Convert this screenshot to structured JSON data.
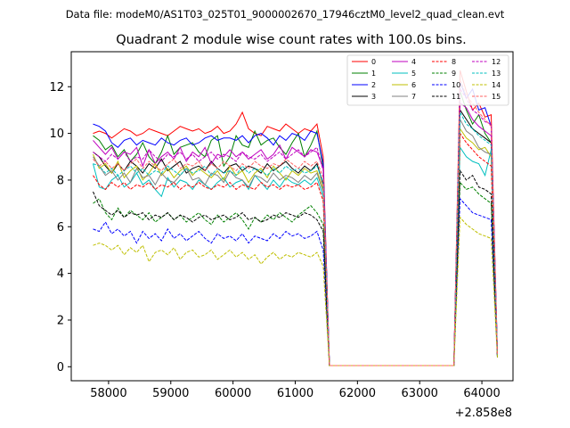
{
  "figure": {
    "suptitle": "Data file: modeM0/AS1T03_025T01_9000002670_17946cztM0_level2_quad_clean.evt"
  },
  "chart_data": {
    "type": "line",
    "title": "Quadrant 2 module wise count rates with 100.0s bins.",
    "xlabel": "",
    "ylabel": "",
    "x_offset_label": "+2.858e8",
    "x_offset": 285800000,
    "xlim": [
      57400,
      64500
    ],
    "ylim": [
      -0.6,
      13.5
    ],
    "xticks": [
      58000,
      59000,
      60000,
      61000,
      62000,
      63000,
      64000
    ],
    "yticks": [
      0,
      2,
      4,
      6,
      8,
      10,
      12
    ],
    "xtick_labels": [
      "58000",
      "59000",
      "60000",
      "61000",
      "62000",
      "63000",
      "64000"
    ],
    "ytick_labels": [
      "0",
      "2",
      "4",
      "6",
      "8",
      "10",
      "12"
    ],
    "grid": false,
    "legend_position": "top-right",
    "x": [
      57750,
      57850,
      57950,
      58050,
      58150,
      58250,
      58350,
      58450,
      58550,
      58650,
      58750,
      58850,
      58950,
      59050,
      59150,
      59250,
      59350,
      59450,
      59550,
      59650,
      59750,
      59850,
      59950,
      60050,
      60150,
      60250,
      60350,
      60450,
      60550,
      60650,
      60750,
      60850,
      60950,
      61050,
      61150,
      61250,
      61350,
      61450,
      61550,
      61650,
      61750,
      61850,
      61950,
      62050,
      62150,
      62250,
      62350,
      62450,
      62550,
      62650,
      62750,
      62850,
      62950,
      63050,
      63150,
      63250,
      63350,
      63450,
      63550,
      63650,
      63750,
      63850,
      63950,
      64050,
      64150,
      64250
    ],
    "series": [
      {
        "name": "0",
        "color": "#ff0000",
        "dash": false,
        "values": [
          10.0,
          10.1,
          10.0,
          9.8,
          10.0,
          10.2,
          10.1,
          9.9,
          10.0,
          10.2,
          10.1,
          10.0,
          9.9,
          10.1,
          10.3,
          10.2,
          10.1,
          10.2,
          10.0,
          10.1,
          10.3,
          10.0,
          10.1,
          10.4,
          10.9,
          10.2,
          10.0,
          9.9,
          10.3,
          10.2,
          10.1,
          10.4,
          10.2,
          10.0,
          10.2,
          10.1,
          10.4,
          9.0,
          0.05,
          0.05,
          0.05,
          0.05,
          0.05,
          0.05,
          0.05,
          0.05,
          0.05,
          0.05,
          0.05,
          0.05,
          0.05,
          0.05,
          0.05,
          0.05,
          0.05,
          0.05,
          0.05,
          0.05,
          0.05,
          12.7,
          11.8,
          11.0,
          11.3,
          10.7,
          10.8,
          0.6
        ]
      },
      {
        "name": "1",
        "color": "#008000",
        "dash": false,
        "values": [
          9.9,
          9.7,
          9.3,
          9.5,
          9.0,
          9.3,
          8.8,
          9.1,
          9.6,
          9.0,
          8.7,
          9.2,
          9.9,
          9.1,
          9.4,
          9.5,
          9.6,
          9.2,
          9.0,
          9.7,
          9.9,
          8.6,
          9.0,
          9.9,
          9.5,
          9.4,
          10.1,
          9.5,
          9.7,
          9.8,
          9.4,
          9.1,
          9.6,
          10.0,
          9.0,
          9.5,
          10.1,
          8.5,
          0.05,
          0.05,
          0.05,
          0.05,
          0.05,
          0.05,
          0.05,
          0.05,
          0.05,
          0.05,
          0.05,
          0.05,
          0.05,
          0.05,
          0.05,
          0.05,
          0.05,
          0.05,
          0.05,
          0.05,
          0.05,
          11.8,
          11.0,
          10.4,
          10.8,
          10.0,
          9.6,
          0.5
        ]
      },
      {
        "name": "2",
        "color": "#0000ff",
        "dash": false,
        "values": [
          10.4,
          10.3,
          10.1,
          9.6,
          9.4,
          9.7,
          9.8,
          9.5,
          9.7,
          9.6,
          9.5,
          9.8,
          9.6,
          9.5,
          9.7,
          9.8,
          9.5,
          9.6,
          9.8,
          9.9,
          9.7,
          9.8,
          9.8,
          9.7,
          9.9,
          9.6,
          9.9,
          10.0,
          9.8,
          9.5,
          9.9,
          9.7,
          10.0,
          9.9,
          9.7,
          10.1,
          10.0,
          8.7,
          0.05,
          0.05,
          0.05,
          0.05,
          0.05,
          0.05,
          0.05,
          0.05,
          0.05,
          0.05,
          0.05,
          0.05,
          0.05,
          0.05,
          0.05,
          0.05,
          0.05,
          0.05,
          0.05,
          0.05,
          0.05,
          12.2,
          11.5,
          11.9,
          11.0,
          11.1,
          10.3,
          0.6
        ]
      },
      {
        "name": "3",
        "color": "#000000",
        "dash": false,
        "values": [
          9.2,
          9.0,
          8.6,
          8.3,
          8.7,
          8.4,
          8.8,
          8.6,
          8.3,
          8.7,
          8.5,
          8.9,
          8.4,
          8.6,
          8.8,
          8.3,
          8.5,
          8.6,
          8.4,
          8.8,
          8.5,
          8.3,
          8.6,
          8.7,
          8.4,
          8.6,
          8.5,
          8.3,
          8.7,
          8.4,
          8.6,
          8.8,
          8.5,
          8.3,
          8.6,
          8.4,
          8.7,
          7.8,
          0.05,
          0.05,
          0.05,
          0.05,
          0.05,
          0.05,
          0.05,
          0.05,
          0.05,
          0.05,
          0.05,
          0.05,
          0.05,
          0.05,
          0.05,
          0.05,
          0.05,
          0.05,
          0.05,
          0.05,
          0.05,
          11.0,
          10.6,
          10.2,
          10.0,
          9.8,
          9.6,
          0.5
        ]
      },
      {
        "name": "4",
        "color": "#bf00bf",
        "dash": false,
        "values": [
          9.7,
          9.4,
          9.1,
          9.4,
          8.9,
          9.2,
          9.1,
          9.4,
          8.6,
          9.3,
          8.7,
          9.0,
          9.2,
          8.9,
          9.4,
          8.8,
          9.2,
          9.0,
          9.4,
          8.7,
          9.1,
          9.0,
          9.3,
          9.0,
          9.2,
          8.9,
          9.1,
          9.3,
          8.9,
          9.1,
          9.5,
          8.9,
          9.4,
          9.2,
          9.0,
          9.3,
          9.2,
          8.5,
          0.05,
          0.05,
          0.05,
          0.05,
          0.05,
          0.05,
          0.05,
          0.05,
          0.05,
          0.05,
          0.05,
          0.05,
          0.05,
          0.05,
          0.05,
          0.05,
          0.05,
          0.05,
          0.05,
          0.05,
          0.05,
          11.3,
          11.1,
          10.6,
          10.3,
          10.1,
          9.9,
          0.5
        ]
      },
      {
        "name": "5",
        "color": "#00bfbf",
        "dash": false,
        "values": [
          8.7,
          7.7,
          7.6,
          8.0,
          8.2,
          7.7,
          7.9,
          8.3,
          7.8,
          8.0,
          7.6,
          7.3,
          8.1,
          7.7,
          8.0,
          7.9,
          7.6,
          8.0,
          7.8,
          7.6,
          7.9,
          8.1,
          7.7,
          7.9,
          8.0,
          7.6,
          8.2,
          7.9,
          7.6,
          8.0,
          7.7,
          8.1,
          7.9,
          7.8,
          8.0,
          7.8,
          8.1,
          7.3,
          0.05,
          0.05,
          0.05,
          0.05,
          0.05,
          0.05,
          0.05,
          0.05,
          0.05,
          0.05,
          0.05,
          0.05,
          0.05,
          0.05,
          0.05,
          0.05,
          0.05,
          0.05,
          0.05,
          0.05,
          0.05,
          9.4,
          9.0,
          8.8,
          8.7,
          8.2,
          9.3,
          0.5
        ]
      },
      {
        "name": "6",
        "color": "#bfbf00",
        "dash": false,
        "values": [
          9.1,
          8.5,
          8.7,
          8.3,
          8.8,
          8.1,
          8.4,
          8.6,
          8.0,
          8.3,
          8.7,
          8.2,
          8.5,
          8.1,
          8.4,
          8.6,
          8.2,
          8.5,
          8.3,
          8.1,
          8.4,
          8.0,
          8.6,
          8.2,
          8.4,
          7.9,
          8.3,
          8.5,
          8.1,
          8.6,
          8.3,
          8.0,
          8.4,
          8.2,
          8.5,
          8.3,
          8.4,
          7.6,
          0.05,
          0.05,
          0.05,
          0.05,
          0.05,
          0.05,
          0.05,
          0.05,
          0.05,
          0.05,
          0.05,
          0.05,
          0.05,
          0.05,
          0.05,
          0.05,
          0.05,
          0.05,
          0.05,
          0.05,
          0.05,
          10.2,
          9.8,
          9.6,
          9.3,
          9.4,
          9.0,
          0.5
        ]
      },
      {
        "name": "7",
        "color": "#808080",
        "dash": false,
        "values": [
          9.0,
          8.6,
          8.2,
          8.4,
          8.0,
          8.3,
          7.9,
          8.5,
          8.1,
          8.2,
          7.8,
          8.3,
          8.0,
          7.9,
          8.2,
          8.5,
          8.0,
          8.1,
          7.8,
          8.3,
          8.2,
          7.9,
          8.4,
          8.1,
          8.0,
          7.7,
          8.2,
          8.1,
          7.9,
          8.3,
          8.0,
          8.2,
          8.1,
          7.9,
          8.2,
          8.0,
          8.3,
          7.5,
          0.05,
          0.05,
          0.05,
          0.05,
          0.05,
          0.05,
          0.05,
          0.05,
          0.05,
          0.05,
          0.05,
          0.05,
          0.05,
          0.05,
          0.05,
          0.05,
          0.05,
          0.05,
          0.05,
          0.05,
          0.05,
          10.6,
          10.1,
          9.9,
          9.4,
          9.2,
          9.1,
          0.5
        ]
      },
      {
        "name": "8",
        "color": "#ff0000",
        "dash": true,
        "values": [
          8.2,
          7.8,
          7.6,
          7.9,
          7.7,
          7.9,
          7.6,
          7.8,
          7.7,
          7.9,
          7.6,
          7.8,
          7.7,
          7.9,
          7.6,
          7.8,
          7.7,
          7.9,
          7.7,
          7.6,
          7.8,
          7.7,
          7.9,
          7.6,
          7.8,
          7.7,
          7.6,
          7.9,
          7.7,
          7.8,
          7.6,
          7.8,
          7.7,
          7.8,
          7.6,
          7.7,
          7.9,
          7.1,
          0.05,
          0.05,
          0.05,
          0.05,
          0.05,
          0.05,
          0.05,
          0.05,
          0.05,
          0.05,
          0.05,
          0.05,
          0.05,
          0.05,
          0.05,
          0.05,
          0.05,
          0.05,
          0.05,
          0.05,
          0.05,
          10.0,
          9.6,
          9.3,
          9.0,
          8.8,
          8.6,
          0.5
        ]
      },
      {
        "name": "9",
        "color": "#008000",
        "dash": true,
        "values": [
          7.0,
          7.2,
          6.6,
          6.3,
          6.8,
          6.4,
          6.7,
          6.5,
          6.3,
          6.6,
          6.2,
          6.4,
          6.6,
          6.3,
          6.5,
          6.2,
          6.4,
          6.6,
          6.3,
          6.1,
          6.5,
          6.2,
          6.4,
          6.6,
          6.3,
          5.9,
          6.4,
          6.2,
          6.5,
          6.3,
          6.6,
          6.4,
          6.2,
          6.5,
          6.7,
          6.9,
          6.6,
          6.1,
          0.05,
          0.05,
          0.05,
          0.05,
          0.05,
          0.05,
          0.05,
          0.05,
          0.05,
          0.05,
          0.05,
          0.05,
          0.05,
          0.05,
          0.05,
          0.05,
          0.05,
          0.05,
          0.05,
          0.05,
          0.05,
          7.9,
          7.6,
          7.7,
          7.4,
          7.2,
          7.0,
          0.4
        ]
      },
      {
        "name": "10",
        "color": "#0000ff",
        "dash": true,
        "values": [
          5.9,
          5.8,
          6.2,
          5.7,
          5.9,
          5.6,
          5.8,
          5.3,
          5.8,
          5.5,
          5.7,
          5.4,
          5.9,
          5.5,
          5.7,
          5.4,
          5.6,
          5.8,
          5.5,
          5.3,
          5.7,
          5.5,
          5.6,
          5.4,
          5.7,
          5.3,
          5.6,
          5.5,
          5.4,
          5.7,
          5.5,
          5.8,
          5.6,
          5.7,
          5.5,
          5.6,
          5.8,
          5.0,
          0.05,
          0.05,
          0.05,
          0.05,
          0.05,
          0.05,
          0.05,
          0.05,
          0.05,
          0.05,
          0.05,
          0.05,
          0.05,
          0.05,
          0.05,
          0.05,
          0.05,
          0.05,
          0.05,
          0.05,
          0.05,
          7.2,
          6.9,
          6.6,
          6.5,
          6.4,
          6.3,
          0.4
        ]
      },
      {
        "name": "11",
        "color": "#000000",
        "dash": true,
        "values": [
          7.5,
          6.9,
          6.7,
          6.5,
          6.7,
          6.4,
          6.6,
          6.5,
          6.6,
          6.3,
          6.5,
          6.4,
          6.6,
          6.3,
          6.5,
          6.4,
          6.2,
          6.4,
          6.5,
          6.3,
          6.4,
          6.5,
          6.3,
          6.4,
          6.6,
          6.3,
          6.4,
          6.2,
          6.3,
          6.5,
          6.4,
          6.6,
          6.5,
          6.4,
          6.6,
          6.5,
          6.3,
          5.8,
          0.05,
          0.05,
          0.05,
          0.05,
          0.05,
          0.05,
          0.05,
          0.05,
          0.05,
          0.05,
          0.05,
          0.05,
          0.05,
          0.05,
          0.05,
          0.05,
          0.05,
          0.05,
          0.05,
          0.05,
          0.05,
          8.4,
          8.0,
          8.2,
          7.7,
          7.6,
          7.4,
          0.4
        ]
      },
      {
        "name": "12",
        "color": "#bf00bf",
        "dash": true,
        "values": [
          9.2,
          9.0,
          8.8,
          9.1,
          8.9,
          9.2,
          8.8,
          9.0,
          8.9,
          9.3,
          9.0,
          8.8,
          9.1,
          9.0,
          9.2,
          8.9,
          9.1,
          8.8,
          9.0,
          9.2,
          8.9,
          9.1,
          9.0,
          8.8,
          9.2,
          9.0,
          8.9,
          9.1,
          8.8,
          9.0,
          9.2,
          8.9,
          9.1,
          9.3,
          9.0,
          9.2,
          9.4,
          8.4,
          0.05,
          0.05,
          0.05,
          0.05,
          0.05,
          0.05,
          0.05,
          0.05,
          0.05,
          0.05,
          0.05,
          0.05,
          0.05,
          0.05,
          0.05,
          0.05,
          0.05,
          0.05,
          0.05,
          0.05,
          0.05,
          11.9,
          11.5,
          11.0,
          10.8,
          10.5,
          10.4,
          0.5
        ]
      },
      {
        "name": "13",
        "color": "#00bfbf",
        "dash": true,
        "values": [
          8.7,
          8.6,
          8.3,
          8.5,
          8.2,
          8.4,
          8.6,
          8.3,
          8.5,
          8.2,
          8.4,
          8.3,
          8.6,
          8.4,
          8.2,
          8.5,
          8.3,
          8.4,
          8.6,
          8.2,
          8.5,
          8.3,
          8.4,
          8.2,
          8.6,
          8.3,
          8.5,
          8.4,
          8.2,
          8.5,
          8.3,
          8.6,
          8.4,
          8.5,
          8.3,
          8.4,
          8.6,
          7.9,
          0.05,
          0.05,
          0.05,
          0.05,
          0.05,
          0.05,
          0.05,
          0.05,
          0.05,
          0.05,
          0.05,
          0.05,
          0.05,
          0.05,
          0.05,
          0.05,
          0.05,
          0.05,
          0.05,
          0.05,
          0.05,
          10.9,
          10.4,
          10.2,
          9.9,
          9.7,
          9.5,
          0.5
        ]
      },
      {
        "name": "14",
        "color": "#bfbf00",
        "dash": true,
        "values": [
          5.2,
          5.3,
          5.2,
          5.0,
          5.2,
          4.8,
          5.1,
          4.9,
          5.2,
          4.5,
          4.9,
          5.0,
          4.8,
          5.1,
          4.6,
          4.9,
          5.0,
          4.7,
          4.8,
          5.0,
          4.6,
          4.8,
          5.0,
          4.7,
          4.9,
          4.6,
          4.8,
          4.4,
          4.7,
          4.9,
          4.6,
          4.8,
          4.7,
          4.9,
          4.8,
          4.7,
          4.9,
          4.3,
          0.05,
          0.05,
          0.05,
          0.05,
          0.05,
          0.05,
          0.05,
          0.05,
          0.05,
          0.05,
          0.05,
          0.05,
          0.05,
          0.05,
          0.05,
          0.05,
          0.05,
          0.05,
          0.05,
          0.05,
          0.05,
          6.4,
          6.1,
          5.9,
          5.7,
          5.6,
          5.5,
          0.4
        ]
      },
      {
        "name": "15",
        "color": "#ff6060",
        "dash": true,
        "values": [
          8.9,
          8.6,
          8.8,
          8.5,
          8.7,
          8.4,
          8.7,
          8.9,
          8.5,
          8.8,
          8.6,
          8.4,
          8.7,
          8.9,
          8.5,
          8.7,
          8.6,
          8.8,
          8.4,
          8.7,
          8.5,
          8.8,
          8.6,
          8.4,
          8.7,
          8.5,
          8.8,
          8.6,
          8.5,
          8.7,
          8.6,
          8.9,
          8.7,
          8.5,
          8.8,
          8.6,
          8.8,
          8.1,
          0.05,
          0.05,
          0.05,
          0.05,
          0.05,
          0.05,
          0.05,
          0.05,
          0.05,
          0.05,
          0.05,
          0.05,
          0.05,
          0.05,
          0.05,
          0.05,
          0.05,
          0.05,
          0.05,
          0.05,
          0.05,
          12.3,
          11.6,
          11.3,
          10.9,
          10.6,
          10.3,
          0.5
        ]
      }
    ]
  }
}
